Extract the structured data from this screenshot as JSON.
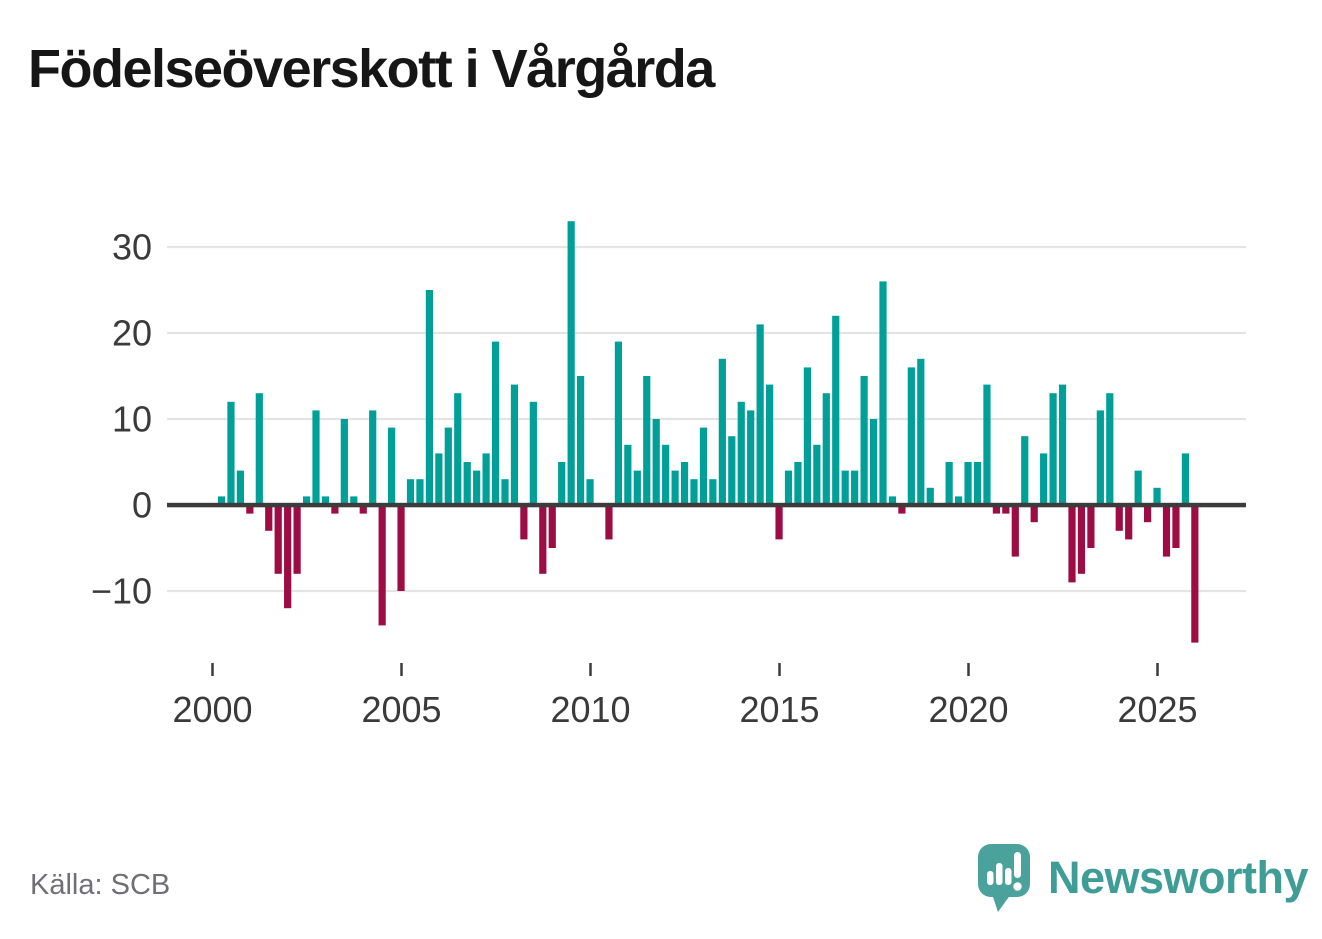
{
  "title": "Födelseöverskott i Vårgårda",
  "footer": {
    "source": "Källa: SCB",
    "brand": "Newsworthy"
  },
  "colors": {
    "positive": "#00a099",
    "negative": "#9e0c44",
    "axis": "#3c3c3c",
    "grid": "#e4e4e4",
    "tick_label": "#3a3a3a",
    "title": "#161616",
    "source_text": "#6f6f78",
    "brand_text": "#3f9d98",
    "logo_bubble": "#4ba29d"
  },
  "chart_data": {
    "type": "bar",
    "title": "Födelseöverskott i Vårgårda",
    "x_start": "2000Q1",
    "x_end": "2025Q4",
    "frequency": "quarterly",
    "grid": "horizontal",
    "legend": "none",
    "x_tick_labels": [
      "2000",
      "2005",
      "2010",
      "2015",
      "2020",
      "2025"
    ],
    "y_tick_labels": [
      "30",
      "20",
      "10",
      "0",
      "−10"
    ],
    "y_tick_values": [
      30,
      20,
      10,
      0,
      -10
    ],
    "ylim": [
      -17,
      34
    ],
    "values_by_year": {
      "2000": [
        1,
        12,
        4,
        -1
      ],
      "2001": [
        13,
        -3,
        -8,
        -12
      ],
      "2002": [
        -8,
        1,
        11,
        1
      ],
      "2003": [
        -1,
        10,
        1,
        -1
      ],
      "2004": [
        11,
        -14,
        9,
        -10
      ],
      "2005": [
        3,
        3,
        25,
        6
      ],
      "2006": [
        9,
        13,
        5,
        4
      ],
      "2007": [
        6,
        19,
        3,
        14
      ],
      "2008": [
        -4,
        12,
        -8,
        -5
      ],
      "2009": [
        5,
        33,
        15,
        3
      ],
      "2010": [
        0,
        -4,
        19,
        7
      ],
      "2011": [
        4,
        15,
        10,
        7
      ],
      "2012": [
        4,
        5,
        3,
        9
      ],
      "2013": [
        3,
        17,
        8,
        12
      ],
      "2014": [
        11,
        21,
        14,
        -4
      ],
      "2015": [
        4,
        5,
        16,
        7
      ],
      "2016": [
        13,
        22,
        4,
        4
      ],
      "2017": [
        15,
        10,
        26,
        1
      ],
      "2018": [
        -1,
        16,
        17,
        2
      ],
      "2019": [
        0,
        5,
        1,
        5
      ],
      "2020": [
        5,
        14,
        -1,
        -1
      ],
      "2021": [
        -6,
        8,
        -2,
        6
      ],
      "2022": [
        13,
        14,
        -9,
        -8
      ],
      "2023": [
        -5,
        11,
        13,
        -3
      ],
      "2024": [
        -4,
        4,
        -2,
        2
      ],
      "2025": [
        -6,
        -5,
        6,
        -16
      ]
    }
  }
}
